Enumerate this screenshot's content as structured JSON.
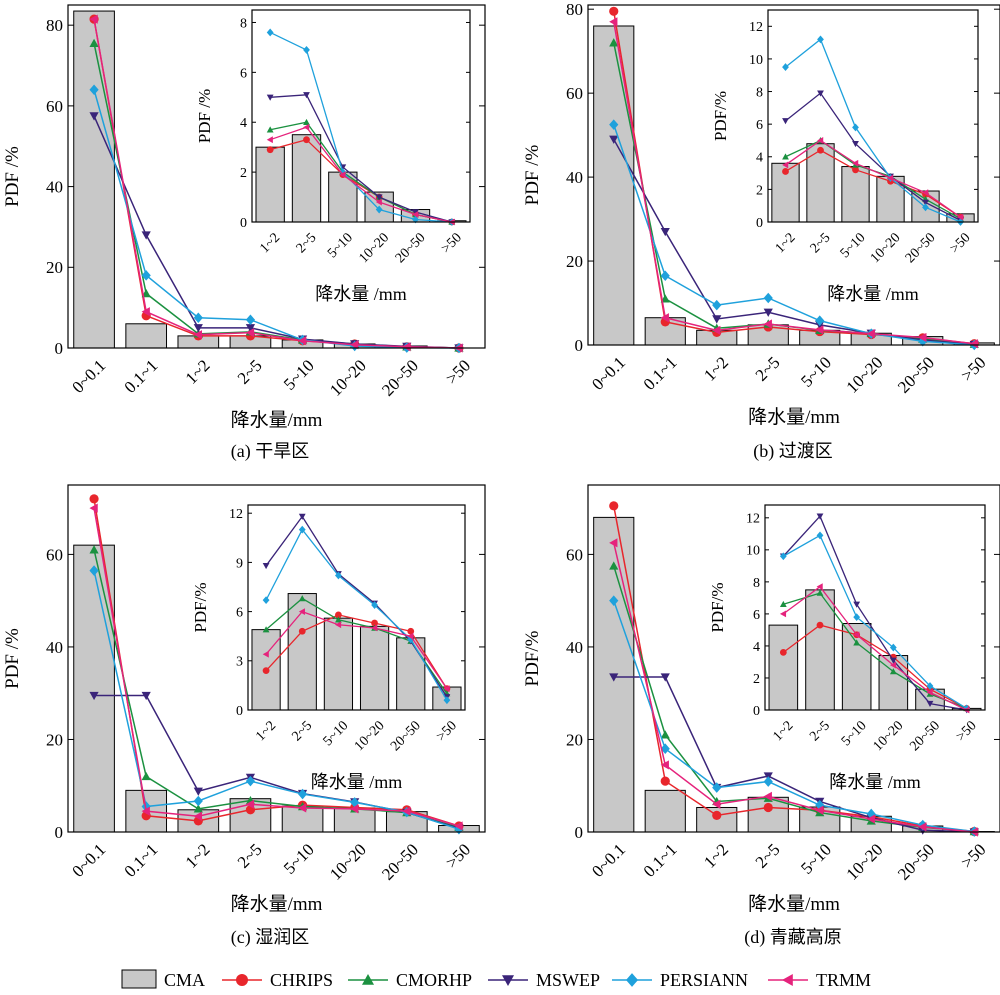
{
  "colors": {
    "CMA": "#c8c8c8",
    "CHRIPS": "#e8262c",
    "CMORHP": "#1b9140",
    "MSWEP": "#3a2479",
    "PERSIANN": "#1fa1dc",
    "TRMM": "#e5237c"
  },
  "legend": {
    "items": [
      {
        "name": "CMA",
        "shape": "bar"
      },
      {
        "name": "CHRIPS",
        "shape": "circle"
      },
      {
        "name": "CMORHP",
        "shape": "triangle-up"
      },
      {
        "name": "MSWEP",
        "shape": "triangle-down"
      },
      {
        "name": "PERSIANN",
        "shape": "diamond"
      },
      {
        "name": "TRMM",
        "shape": "triangle-left"
      }
    ]
  },
  "chart_data": [
    {
      "type": "bar+line",
      "caption": "(a) 干旱区",
      "xlabel": "降水量/mm",
      "ylabel": "PDF /%",
      "categories": [
        "0~0.1",
        "0.1~1",
        "1~2",
        "2~5",
        "5~10",
        "10~20",
        "20~50",
        ">50"
      ],
      "ylim": [
        0,
        85
      ],
      "yticks": [
        0,
        20,
        40,
        60,
        80
      ],
      "bars": [
        83.5,
        6,
        3,
        3,
        2,
        1,
        0.5,
        0
      ],
      "series": [
        {
          "name": "CHRIPS",
          "values": [
            81.5,
            8,
            3,
            3,
            1.8,
            1,
            0.3,
            0
          ]
        },
        {
          "name": "CMORHP",
          "values": [
            75.5,
            13.5,
            3.5,
            4,
            2,
            1,
            0.3,
            0
          ]
        },
        {
          "name": "MSWEP",
          "values": [
            57.5,
            28,
            5,
            5,
            2.2,
            1,
            0.4,
            0
          ]
        },
        {
          "name": "PERSIANN",
          "values": [
            64,
            18,
            7.5,
            7,
            2,
            0.5,
            0.1,
            0
          ]
        },
        {
          "name": "TRMM",
          "values": [
            81.5,
            9,
            3.3,
            3.8,
            1.8,
            0.8,
            0.3,
            0
          ]
        }
      ],
      "inset": {
        "xlabel": "降水量 /mm",
        "ylabel": "PDF /%",
        "categories": [
          "1~2",
          "2~5",
          "5~10",
          "10~20",
          "20~50",
          ">50"
        ],
        "ylim": [
          0,
          8.5
        ],
        "yticks": [
          0,
          2,
          4,
          6,
          8
        ],
        "bars": [
          3,
          3.5,
          2,
          1.2,
          0.5,
          0.05
        ],
        "series": [
          {
            "name": "CHRIPS",
            "values": [
              2.9,
              3.3,
              1.9,
              1,
              0.3,
              0
            ]
          },
          {
            "name": "CMORHP",
            "values": [
              3.7,
              4,
              2,
              1,
              0.3,
              0
            ]
          },
          {
            "name": "MSWEP",
            "values": [
              5,
              5.1,
              2.2,
              1,
              0.4,
              0
            ]
          },
          {
            "name": "PERSIANN",
            "values": [
              7.6,
              6.9,
              2,
              0.5,
              0.1,
              0
            ]
          },
          {
            "name": "TRMM",
            "values": [
              3.3,
              3.8,
              1.9,
              0.8,
              0.3,
              0
            ]
          }
        ]
      }
    },
    {
      "type": "bar+line",
      "caption": "(b) 过渡区",
      "xlabel": "降水量/mm",
      "ylabel": "PDF /%",
      "categories": [
        "0~0.1",
        "0.1~1",
        "1~2",
        "2~5",
        "5~10",
        "10~20",
        "20~50",
        ">50"
      ],
      "ylim": [
        0,
        81
      ],
      "yticks": [
        0,
        20,
        40,
        60,
        80
      ],
      "bars": [
        76,
        6.5,
        3.5,
        4.8,
        3.5,
        2.8,
        2,
        0.5
      ],
      "series": [
        {
          "name": "CHRIPS",
          "values": [
            79.5,
            5.5,
            3,
            4.3,
            3.2,
            2.5,
            1.7,
            0.3
          ]
        },
        {
          "name": "CMORHP",
          "values": [
            72,
            11,
            4,
            5,
            3.5,
            2.8,
            1.4,
            0.2
          ]
        },
        {
          "name": "MSWEP",
          "values": [
            49,
            27,
            6.2,
            7.8,
            4.8,
            2.8,
            1.2,
            0.1
          ]
        },
        {
          "name": "PERSIANN",
          "values": [
            52.5,
            16.5,
            9.5,
            11.2,
            5.8,
            2.7,
            0.9,
            0
          ]
        },
        {
          "name": "TRMM",
          "values": [
            77,
            6.5,
            3.5,
            5,
            3.6,
            2.7,
            1.8,
            0.3
          ]
        }
      ],
      "inset": {
        "xlabel": "降水量 /mm",
        "ylabel": "PDF/%",
        "categories": [
          "1~2",
          "2~5",
          "5~10",
          "10~20",
          "20~50",
          ">50"
        ],
        "ylim": [
          0,
          13
        ],
        "yticks": [
          0,
          2,
          4,
          6,
          8,
          10,
          12
        ],
        "bars": [
          3.6,
          4.8,
          3.4,
          2.8,
          1.9,
          0.5
        ],
        "series": [
          {
            "name": "CHRIPS",
            "values": [
              3.1,
              4.4,
              3.2,
              2.5,
              1.7,
              0.3
            ]
          },
          {
            "name": "CMORHP",
            "values": [
              4,
              5,
              3.5,
              2.8,
              1.4,
              0.2
            ]
          },
          {
            "name": "MSWEP",
            "values": [
              6.2,
              7.9,
              4.8,
              2.8,
              1.2,
              0.1
            ]
          },
          {
            "name": "PERSIANN",
            "values": [
              9.5,
              11.2,
              5.8,
              2.7,
              0.9,
              0
            ]
          },
          {
            "name": "TRMM",
            "values": [
              3.5,
              5,
              3.6,
              2.7,
              1.8,
              0.3
            ]
          }
        ]
      }
    },
    {
      "type": "bar+line",
      "caption": "(c) 湿润区",
      "xlabel": "降水量/mm",
      "ylabel": "PDF /%",
      "categories": [
        "0~0.1",
        "0.1~1",
        "1~2",
        "2~5",
        "5~10",
        "10~20",
        "20~50",
        ">50"
      ],
      "ylim": [
        0,
        75
      ],
      "yticks": [
        0,
        20,
        40,
        60
      ],
      "bars": [
        62,
        9,
        4.8,
        7.2,
        5.6,
        5.2,
        4.4,
        1.4
      ],
      "series": [
        {
          "name": "CHRIPS",
          "values": [
            72,
            3.5,
            2.4,
            4.8,
            5.8,
            5.3,
            4.8,
            1.3
          ]
        },
        {
          "name": "CMORHP",
          "values": [
            61,
            12,
            5,
            6.8,
            5.5,
            5,
            4.2,
            1
          ]
        },
        {
          "name": "MSWEP",
          "values": [
            29.5,
            29.5,
            8.8,
            11.8,
            8.3,
            6.5,
            4.2,
            0.8
          ]
        },
        {
          "name": "PERSIANN",
          "values": [
            56.5,
            5.5,
            6.7,
            11,
            8.2,
            6.4,
            4.3,
            0.6
          ]
        },
        {
          "name": "TRMM",
          "values": [
            70,
            4.5,
            3.4,
            6,
            5.2,
            5,
            4.5,
            1.3
          ]
        }
      ],
      "inset": {
        "xlabel": "降水量 /mm",
        "ylabel": "PDF/%",
        "categories": [
          "1~2",
          "2~5",
          "5~10",
          "10~20",
          "20~50",
          ">50"
        ],
        "ylim": [
          0,
          12.5
        ],
        "yticks": [
          0,
          3,
          6,
          9,
          12
        ],
        "bars": [
          4.9,
          7.1,
          5.6,
          5.1,
          4.4,
          1.4
        ],
        "series": [
          {
            "name": "CHRIPS",
            "values": [
              2.4,
              4.8,
              5.8,
              5.3,
              4.8,
              1.3
            ]
          },
          {
            "name": "CMORHP",
            "values": [
              4.9,
              6.8,
              5.5,
              5,
              4.2,
              1
            ]
          },
          {
            "name": "MSWEP",
            "values": [
              8.8,
              11.8,
              8.3,
              6.5,
              4.2,
              0.8
            ]
          },
          {
            "name": "PERSIANN",
            "values": [
              6.7,
              11,
              8.2,
              6.4,
              4.3,
              0.6
            ]
          },
          {
            "name": "TRMM",
            "values": [
              3.4,
              6,
              5.2,
              5,
              4.5,
              1.3
            ]
          }
        ]
      }
    },
    {
      "type": "bar+line",
      "caption": "(d) 青藏高原",
      "xlabel": "降水量/mm",
      "ylabel": "PDF/%",
      "categories": [
        "0~0.1",
        "0.1~1",
        "1~2",
        "2~5",
        "5~10",
        "10~20",
        "20~50",
        ">50"
      ],
      "ylim": [
        0,
        75
      ],
      "yticks": [
        0,
        20,
        40,
        60
      ],
      "bars": [
        68,
        9,
        5.3,
        7.5,
        5.4,
        3.4,
        1.3,
        0.1
      ],
      "series": [
        {
          "name": "CHRIPS",
          "values": [
            70.5,
            11,
            3.6,
            5.3,
            4.7,
            3.3,
            1.3,
            0.1
          ]
        },
        {
          "name": "CMORHP",
          "values": [
            57.5,
            21,
            6.6,
            7.3,
            4.2,
            2.4,
            1,
            0.1
          ]
        },
        {
          "name": "MSWEP",
          "values": [
            33.5,
            33.5,
            9.6,
            12.1,
            6.6,
            3.1,
            0.4,
            0
          ]
        },
        {
          "name": "PERSIANN",
          "values": [
            50,
            18,
            9.6,
            10.9,
            5.8,
            3.9,
            1.5,
            0.1
          ]
        },
        {
          "name": "TRMM",
          "values": [
            62.5,
            14.5,
            6,
            7.7,
            4.7,
            2.8,
            1.1,
            0
          ]
        }
      ],
      "inset": {
        "xlabel": "降水量 /mm",
        "ylabel": "PDF/%",
        "categories": [
          "1~2",
          "2~5",
          "5~10",
          "10~20",
          "20~50",
          ">50"
        ],
        "ylim": [
          0,
          12.8
        ],
        "yticks": [
          0,
          2,
          4,
          6,
          8,
          10,
          12
        ],
        "bars": [
          5.3,
          7.5,
          5.4,
          3.4,
          1.3,
          0.1
        ],
        "series": [
          {
            "name": "CHRIPS",
            "values": [
              3.6,
              5.3,
              4.7,
              3.3,
              1.3,
              0.1
            ]
          },
          {
            "name": "CMORHP",
            "values": [
              6.6,
              7.3,
              4.2,
              2.4,
              1,
              0.1
            ]
          },
          {
            "name": "MSWEP",
            "values": [
              9.6,
              12.1,
              6.6,
              3.1,
              0.4,
              0
            ]
          },
          {
            "name": "PERSIANN",
            "values": [
              9.6,
              10.9,
              5.8,
              3.9,
              1.5,
              0.1
            ]
          },
          {
            "name": "TRMM",
            "values": [
              6,
              7.7,
              4.7,
              2.8,
              1.1,
              0
            ]
          }
        ]
      }
    }
  ]
}
